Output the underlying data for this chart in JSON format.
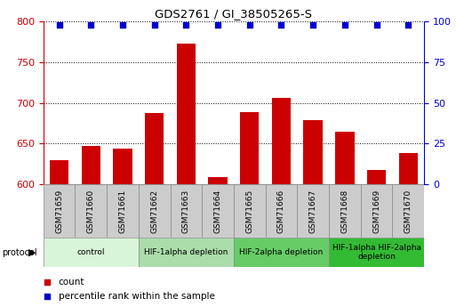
{
  "title": "GDS2761 / GI_38505265-S",
  "samples": [
    "GSM71659",
    "GSM71660",
    "GSM71661",
    "GSM71662",
    "GSM71663",
    "GSM71664",
    "GSM71665",
    "GSM71666",
    "GSM71667",
    "GSM71668",
    "GSM71669",
    "GSM71670"
  ],
  "counts": [
    630,
    647,
    644,
    688,
    773,
    609,
    689,
    706,
    679,
    664,
    618,
    638
  ],
  "percentile_ranks": [
    98,
    98,
    98,
    98,
    98,
    98,
    98,
    98,
    98,
    98,
    98,
    98
  ],
  "ylim_left": [
    600,
    800
  ],
  "ylim_right": [
    0,
    100
  ],
  "yticks_left": [
    600,
    650,
    700,
    750,
    800
  ],
  "yticks_right": [
    0,
    25,
    50,
    75,
    100
  ],
  "bar_color": "#cc0000",
  "dot_color": "#0000cc",
  "bar_width": 0.6,
  "protocol_groups": [
    {
      "label": "control",
      "start": 0,
      "end": 2,
      "color": "#d9f5d9"
    },
    {
      "label": "HIF-1alpha depletion",
      "start": 3,
      "end": 5,
      "color": "#aaddaa"
    },
    {
      "label": "HIF-2alpha depletion",
      "start": 6,
      "end": 8,
      "color": "#66cc66"
    },
    {
      "label": "HIF-1alpha HIF-2alpha\ndepletion",
      "start": 9,
      "end": 11,
      "color": "#33bb33"
    }
  ],
  "legend_items": [
    {
      "label": "count",
      "color": "#cc0000"
    },
    {
      "label": "percentile rank within the sample",
      "color": "#0000cc"
    }
  ],
  "left_axis_color": "#cc0000",
  "right_axis_color": "#0000cc",
  "grid_color": "#000000",
  "sample_box_color": "#cccccc",
  "sample_box_edge": "#888888"
}
